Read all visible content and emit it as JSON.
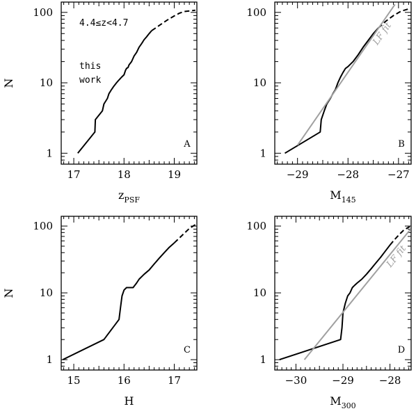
{
  "chart_data": [
    {
      "type": "line",
      "panel": "A",
      "xlabel": "z",
      "xlabel_sub": "PSF",
      "ylabel": "N",
      "xlim": [
        16.75,
        19.45
      ],
      "ylim": [
        0.7,
        140
      ],
      "yscale": "log",
      "xticks": [
        17,
        18,
        19
      ],
      "yticks": [
        1,
        10,
        100
      ],
      "annotations": [
        "4.4≤z<4.7",
        "this",
        "work"
      ],
      "series": [
        {
          "style": "solid",
          "x": [
            17.08,
            17.42,
            17.43,
            17.57,
            17.6,
            17.67,
            17.7,
            17.75,
            17.8,
            17.85,
            17.9,
            17.95,
            18.0,
            18.03,
            18.05,
            18.08,
            18.1,
            18.15,
            18.2,
            18.25,
            18.3,
            18.35,
            18.4,
            18.45,
            18.5,
            18.55
          ],
          "y": [
            1,
            2,
            3,
            4,
            5,
            6,
            7,
            8,
            9,
            10,
            11,
            12,
            13,
            15,
            16,
            16.5,
            18,
            20,
            24,
            27,
            32,
            36,
            41,
            45,
            50,
            55
          ]
        },
        {
          "style": "dashed",
          "x": [
            18.55,
            18.7,
            18.85,
            19.0,
            19.1,
            19.2,
            19.3,
            19.42
          ],
          "y": [
            55,
            65,
            77,
            89,
            97,
            103,
            105,
            107
          ]
        }
      ]
    },
    {
      "type": "line",
      "panel": "B",
      "xlabel": "M",
      "xlabel_sub": "145",
      "ylabel": "",
      "xlim": [
        -29.45,
        -26.75
      ],
      "ylim": [
        0.7,
        140
      ],
      "yscale": "log",
      "xticks": [
        -29,
        -28,
        -27
      ],
      "yticks": [
        1,
        10,
        100
      ],
      "annotations": [
        "LF fit"
      ],
      "series": [
        {
          "style": "solid",
          "x": [
            -29.25,
            -28.55,
            -28.53,
            -28.47,
            -28.42,
            -28.35,
            -28.3,
            -28.25,
            -28.2,
            -28.15,
            -28.1,
            -28.05,
            -28.0,
            -27.9,
            -27.8,
            -27.7,
            -27.6,
            -27.5,
            -27.4
          ],
          "y": [
            1,
            2,
            3,
            4,
            5,
            6,
            7,
            8,
            10,
            12,
            14,
            16,
            17,
            20,
            25,
            32,
            40,
            50,
            60
          ]
        },
        {
          "style": "dashed",
          "x": [
            -27.4,
            -27.25,
            -27.1,
            -26.95,
            -26.8
          ],
          "y": [
            60,
            75,
            90,
            104,
            112
          ]
        },
        {
          "style": "fit",
          "x": [
            -29.0,
            -27.07
          ],
          "y": [
            1.3,
            130
          ]
        }
      ]
    },
    {
      "type": "line",
      "panel": "C",
      "xlabel": "H",
      "xlabel_sub": "",
      "ylabel": "N",
      "xlim": [
        14.75,
        17.45
      ],
      "ylim": [
        0.7,
        140
      ],
      "yscale": "log",
      "xticks": [
        15,
        16,
        17
      ],
      "yticks": [
        1,
        10,
        100
      ],
      "annotations": [],
      "series": [
        {
          "style": "solid",
          "x": [
            14.78,
            15.6,
            15.9,
            15.93,
            15.96,
            16.0,
            16.05,
            16.1,
            16.18,
            16.25,
            16.3,
            16.4,
            16.5,
            16.6,
            16.7,
            16.8,
            16.9,
            17.0
          ],
          "y": [
            1,
            2,
            4,
            6,
            9,
            11,
            12,
            12,
            12,
            14,
            16,
            19,
            22,
            27,
            33,
            40,
            48,
            56
          ]
        },
        {
          "style": "dashed",
          "x": [
            17.0,
            17.1,
            17.2,
            17.3,
            17.42
          ],
          "y": [
            56,
            66,
            78,
            92,
            105
          ]
        }
      ]
    },
    {
      "type": "line",
      "panel": "D",
      "xlabel": "M",
      "xlabel_sub": "300",
      "ylabel": "",
      "xlim": [
        -30.45,
        -27.55
      ],
      "ylim": [
        0.7,
        140
      ],
      "yscale": "log",
      "xticks": [
        -30,
        -29,
        -28
      ],
      "yticks": [
        1,
        10,
        100
      ],
      "annotations": [
        "LF fit"
      ],
      "series": [
        {
          "style": "solid",
          "x": [
            -30.35,
            -29.05,
            -29.02,
            -29.0,
            -28.95,
            -28.9,
            -28.85,
            -28.8,
            -28.75,
            -28.7,
            -28.6,
            -28.5,
            -28.4,
            -28.3,
            -28.2,
            -28.1,
            -28.0
          ],
          "y": [
            1,
            2,
            3,
            5,
            7,
            9,
            10,
            12,
            13,
            14,
            16,
            19,
            23,
            28,
            34,
            42,
            52
          ]
        },
        {
          "style": "dashed",
          "x": [
            -28.0,
            -27.9,
            -27.8,
            -27.7,
            -27.58
          ],
          "y": [
            52,
            63,
            75,
            88,
            98
          ]
        },
        {
          "style": "fit",
          "x": [
            -29.82,
            -27.56
          ],
          "y": [
            1.0,
            90
          ]
        }
      ]
    }
  ]
}
